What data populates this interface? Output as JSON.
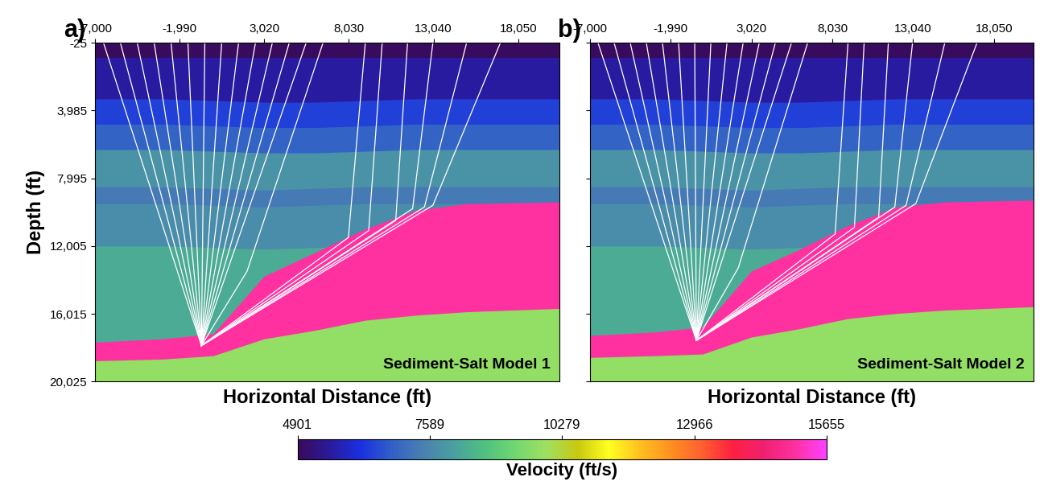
{
  "colorbar": {
    "label": "Velocity (ft/s)",
    "range": [
      4901,
      15655
    ],
    "ticks": [
      4901,
      7589,
      10279,
      12966,
      15655
    ]
  },
  "chart_data": [
    {
      "type": "velocity_model",
      "title": "a)",
      "annotation": "Sediment-Salt Model 1",
      "x_label": "Horizontal Distance (ft)",
      "y_label": "Depth (ft)",
      "xlim": [
        -7000,
        20500
      ],
      "ylim": [
        20025,
        -25
      ],
      "xticks": [
        {
          "value": -7000,
          "label": "-7,000"
        },
        {
          "value": -1990,
          "label": "-1,990"
        },
        {
          "value": 3020,
          "label": "3,020"
        },
        {
          "value": 8030,
          "label": "8,030"
        },
        {
          "value": 13040,
          "label": "13,040"
        },
        {
          "value": 18050,
          "label": "18,050"
        }
      ],
      "yticks": [
        -25,
        {
          "value": 3985,
          "label": "3,985"
        },
        {
          "value": 7995,
          "label": "7,995"
        },
        {
          "value": 12005,
          "label": "12,005"
        },
        {
          "value": 16015,
          "label": "16,015"
        },
        {
          "value": 20025,
          "label": "20,025"
        }
      ],
      "x": [
        -7000,
        -3000,
        0,
        3000,
        6000,
        9000,
        12000,
        15000,
        20500
      ],
      "layers": [
        {
          "velocity": 4950,
          "top": [
            -25,
            -25,
            -25,
            -25,
            -25,
            -25,
            -25,
            -25,
            -25
          ]
        },
        {
          "velocity": 5600,
          "top": [
            900,
            900,
            900,
            900,
            900,
            900,
            900,
            900,
            900
          ]
        },
        {
          "velocity": 6400,
          "top": [
            3300,
            3300,
            3400,
            3500,
            3500,
            3400,
            3300,
            3300,
            3300
          ]
        },
        {
          "velocity": 6900,
          "top": [
            4800,
            4800,
            4900,
            5000,
            5000,
            4900,
            4800,
            4800,
            4800
          ]
        },
        {
          "velocity": 7800,
          "top": [
            6300,
            6300,
            6400,
            6500,
            6500,
            6400,
            6300,
            6300,
            6300
          ]
        },
        {
          "velocity": 7300,
          "top": [
            8500,
            8500,
            8600,
            8700,
            8600,
            8500,
            8500,
            8500,
            8500
          ]
        },
        {
          "velocity": 7700,
          "top": [
            9500,
            9500,
            9600,
            9700,
            9600,
            9500,
            9500,
            9500,
            9500
          ]
        },
        {
          "velocity": 8300,
          "top": [
            12000,
            12000,
            12100,
            12200,
            12100,
            12000,
            12000,
            12000,
            12000
          ]
        },
        {
          "velocity": 15000,
          "top": [
            17700,
            17500,
            17200,
            13800,
            12400,
            11000,
            9900,
            9500,
            9400
          ]
        },
        {
          "velocity": 9800,
          "top": [
            18800,
            18700,
            18500,
            17500,
            17000,
            16400,
            16100,
            15900,
            15700
          ]
        }
      ],
      "rays": [
        [
          [
            -6500,
            -25
          ],
          [
            -700,
            17900
          ]
        ],
        [
          [
            -5500,
            -25
          ],
          [
            -700,
            17900
          ]
        ],
        [
          [
            -4500,
            -25
          ],
          [
            -700,
            17900
          ]
        ],
        [
          [
            -3500,
            -25
          ],
          [
            -700,
            17900
          ]
        ],
        [
          [
            -2500,
            -25
          ],
          [
            -700,
            17900
          ]
        ],
        [
          [
            -1500,
            -25
          ],
          [
            -700,
            17900
          ]
        ],
        [
          [
            -500,
            -25
          ],
          [
            -700,
            17900
          ]
        ],
        [
          [
            500,
            -25
          ],
          [
            -700,
            17900
          ]
        ],
        [
          [
            1500,
            -25
          ],
          [
            -700,
            17900
          ]
        ],
        [
          [
            2500,
            -25
          ],
          [
            -700,
            17900
          ]
        ],
        [
          [
            3500,
            -25
          ],
          [
            -700,
            17900
          ]
        ],
        [
          [
            4500,
            -25
          ],
          [
            -700,
            17900
          ]
        ],
        [
          [
            5500,
            -25
          ],
          [
            -700,
            17900
          ]
        ],
        [
          [
            6500,
            -25
          ],
          [
            2000,
            13500
          ],
          [
            -700,
            17900
          ]
        ],
        [
          [
            9000,
            -25
          ],
          [
            8000,
            11500
          ],
          [
            -700,
            17900
          ]
        ],
        [
          [
            10000,
            -25
          ],
          [
            9200,
            11100
          ],
          [
            -700,
            17900
          ]
        ],
        [
          [
            11500,
            -25
          ],
          [
            10800,
            10500
          ],
          [
            -700,
            17900
          ]
        ],
        [
          [
            13000,
            -25
          ],
          [
            11800,
            9800
          ],
          [
            -700,
            17900
          ]
        ],
        [
          [
            15000,
            -25
          ],
          [
            12500,
            9700
          ],
          [
            -700,
            17900
          ]
        ],
        [
          [
            17000,
            -25
          ],
          [
            13000,
            9600
          ],
          [
            -700,
            17900
          ]
        ]
      ]
    },
    {
      "type": "velocity_model",
      "title": "b)",
      "annotation": "Sediment-Salt Model 2",
      "x_label": "Horizontal Distance (ft)",
      "tick_labels": "x",
      "xlim": [
        -7000,
        20500
      ],
      "ylim": [
        20025,
        -25
      ],
      "xticks": [
        {
          "value": -7000,
          "label": "-7,000"
        },
        {
          "value": -1990,
          "label": "-1,990"
        },
        {
          "value": 3020,
          "label": "3,020"
        },
        {
          "value": 8030,
          "label": "8,030"
        },
        {
          "value": 13040,
          "label": "13,040"
        },
        {
          "value": 18050,
          "label": "18,050"
        }
      ],
      "yticks": [
        -25,
        {
          "value": 3985,
          "label": "3,985"
        },
        {
          "value": 7995,
          "label": "7,995"
        },
        {
          "value": 12005,
          "label": "12,005"
        },
        {
          "value": 16015,
          "label": "16,015"
        },
        {
          "value": 20025,
          "label": "20,025"
        }
      ],
      "x": [
        -7000,
        -3000,
        0,
        3000,
        6000,
        9000,
        12000,
        15000,
        20500
      ],
      "layers": [
        {
          "velocity": 4950,
          "top": [
            -25,
            -25,
            -25,
            -25,
            -25,
            -25,
            -25,
            -25,
            -25
          ]
        },
        {
          "velocity": 5600,
          "top": [
            900,
            900,
            900,
            900,
            900,
            900,
            900,
            900,
            900
          ]
        },
        {
          "velocity": 6400,
          "top": [
            3300,
            3300,
            3400,
            3500,
            3500,
            3400,
            3300,
            3300,
            3300
          ]
        },
        {
          "velocity": 6900,
          "top": [
            4800,
            4800,
            4900,
            5000,
            5000,
            4900,
            4800,
            4800,
            4800
          ]
        },
        {
          "velocity": 7800,
          "top": [
            6300,
            6300,
            6400,
            6500,
            6500,
            6400,
            6300,
            6300,
            6300
          ]
        },
        {
          "velocity": 7300,
          "top": [
            8500,
            8500,
            8600,
            8700,
            8600,
            8500,
            8500,
            8500,
            8500
          ]
        },
        {
          "velocity": 7700,
          "top": [
            9500,
            9500,
            9600,
            9700,
            9600,
            9500,
            9500,
            9500,
            9500
          ]
        },
        {
          "velocity": 8300,
          "top": [
            12000,
            12000,
            12100,
            12200,
            12100,
            12000,
            12000,
            12000,
            12000
          ]
        },
        {
          "velocity": 15000,
          "top": [
            17300,
            17100,
            16800,
            13500,
            12200,
            10800,
            9700,
            9400,
            9300
          ]
        },
        {
          "velocity": 9800,
          "top": [
            18600,
            18500,
            18400,
            17400,
            16900,
            16300,
            16000,
            15800,
            15600
          ]
        }
      ],
      "rays": [
        [
          [
            -6500,
            -25
          ],
          [
            -400,
            17600
          ]
        ],
        [
          [
            -5500,
            -25
          ],
          [
            -400,
            17600
          ]
        ],
        [
          [
            -4500,
            -25
          ],
          [
            -400,
            17600
          ]
        ],
        [
          [
            -3500,
            -25
          ],
          [
            -400,
            17600
          ]
        ],
        [
          [
            -2500,
            -25
          ],
          [
            -400,
            17600
          ]
        ],
        [
          [
            -1500,
            -25
          ],
          [
            -400,
            17600
          ]
        ],
        [
          [
            -500,
            -25
          ],
          [
            -400,
            17600
          ]
        ],
        [
          [
            500,
            -25
          ],
          [
            -400,
            17600
          ]
        ],
        [
          [
            1500,
            -25
          ],
          [
            -400,
            17600
          ]
        ],
        [
          [
            2500,
            -25
          ],
          [
            -400,
            17600
          ]
        ],
        [
          [
            3500,
            -25
          ],
          [
            -400,
            17600
          ]
        ],
        [
          [
            4500,
            -25
          ],
          [
            -400,
            17600
          ]
        ],
        [
          [
            5500,
            -25
          ],
          [
            -400,
            17600
          ]
        ],
        [
          [
            6500,
            -25
          ],
          [
            2200,
            13300
          ],
          [
            -400,
            17600
          ]
        ],
        [
          [
            9000,
            -25
          ],
          [
            8200,
            11300
          ],
          [
            -400,
            17600
          ]
        ],
        [
          [
            10000,
            -25
          ],
          [
            9400,
            10900
          ],
          [
            -400,
            17600
          ]
        ],
        [
          [
            11500,
            -25
          ],
          [
            10900,
            10300
          ],
          [
            -400,
            17600
          ]
        ],
        [
          [
            13000,
            -25
          ],
          [
            11900,
            9700
          ],
          [
            -400,
            17600
          ]
        ],
        [
          [
            15000,
            -25
          ],
          [
            12600,
            9600
          ],
          [
            -400,
            17600
          ]
        ],
        [
          [
            17000,
            -25
          ],
          [
            13200,
            9500
          ],
          [
            -400,
            17600
          ]
        ]
      ]
    }
  ]
}
